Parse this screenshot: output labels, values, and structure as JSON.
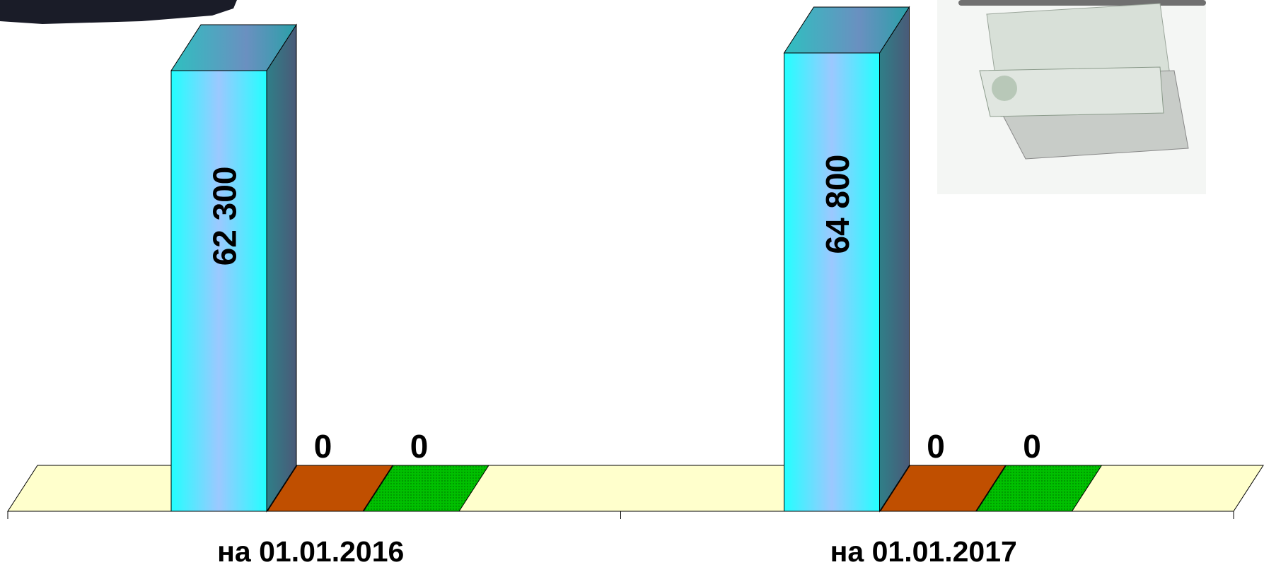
{
  "chart_data": {
    "type": "bar3d",
    "categories": [
      "на 01.01.2016",
      "на 01.01.2017"
    ],
    "series": [
      {
        "color": "#33ffff",
        "values": [
          62300,
          64800
        ],
        "value_labels": [
          "62 300",
          "64 800"
        ]
      },
      {
        "color": "#c04f00",
        "values": [
          0,
          0
        ]
      },
      {
        "color": "#00c000",
        "values": [
          0,
          0
        ]
      }
    ]
  }
}
